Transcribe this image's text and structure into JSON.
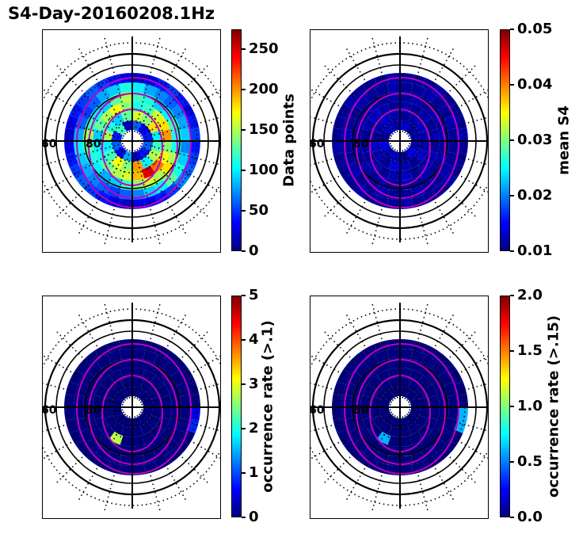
{
  "title": "S4-Day-20160208.1Hz",
  "colormap": [
    "#00007f",
    "#0000ff",
    "#007fff",
    "#00ffff",
    "#7fff7f",
    "#ffff00",
    "#ff7f00",
    "#ff0000",
    "#7f0000"
  ],
  "contour_color": "#c000c0",
  "chart_data": [
    {
      "type": "heatmap",
      "projection": "polar",
      "panel": "top-left",
      "colorbar_label": "Data points",
      "clim": [
        0,
        275
      ],
      "colorbar_ticks": [
        "0",
        "50",
        "100",
        "150",
        "200",
        "250"
      ],
      "colorbar_tick_values": [
        0,
        50,
        100,
        150,
        200,
        250
      ],
      "grid_labels": [
        "60",
        "80"
      ],
      "magnetic_contours": 3,
      "ring_cells": [
        {
          "ring": 1,
          "cells": [
            60,
            40,
            20,
            80,
            30,
            60,
            40,
            120,
            20,
            60,
            30,
            40
          ]
        },
        {
          "ring": 2,
          "cells": [
            120,
            150,
            100,
            200,
            140,
            170,
            120,
            100,
            150,
            110,
            90,
            130,
            160,
            140,
            180,
            100
          ]
        },
        {
          "ring": 3,
          "cells": [
            140,
            170,
            210,
            250,
            190,
            160,
            150,
            130,
            110,
            100,
            90,
            130,
            150,
            170,
            140,
            110,
            120,
            160,
            180,
            200
          ]
        },
        {
          "ring": 4,
          "cells": [
            110,
            150,
            180,
            150,
            160,
            140,
            120,
            90,
            80,
            100,
            110,
            130,
            150,
            120,
            100,
            90,
            130,
            150,
            120,
            110,
            90,
            100,
            120,
            110
          ]
        },
        {
          "ring": 5,
          "cells": [
            70,
            90,
            110,
            130,
            100,
            90,
            70,
            60,
            50,
            60,
            70,
            80,
            90,
            100,
            80,
            60,
            50,
            60,
            80,
            90,
            110,
            100,
            80,
            70,
            60,
            70,
            80,
            90
          ]
        },
        {
          "ring": 6,
          "cells": [
            40,
            50,
            60,
            70,
            50,
            40,
            30,
            30,
            20,
            30,
            40,
            50,
            60,
            50,
            40,
            30,
            20,
            30,
            40,
            50,
            60,
            50,
            40,
            30,
            20,
            30,
            40,
            50,
            40,
            30,
            40,
            50
          ]
        }
      ]
    },
    {
      "type": "heatmap",
      "projection": "polar",
      "panel": "top-right",
      "colorbar_label": "mean S4",
      "clim": [
        0.01,
        0.05
      ],
      "colorbar_ticks": [
        "0.01",
        "0.02",
        "0.03",
        "0.04",
        "0.05"
      ],
      "colorbar_tick_values": [
        0.01,
        0.02,
        0.03,
        0.04,
        0.05
      ],
      "grid_labels": [
        "60",
        "80"
      ],
      "magnetic_contours": 3,
      "ring_cells": [
        {
          "ring": 1,
          "cells": [
            0.012,
            0.014,
            0.011,
            0.013,
            0.012,
            0.015,
            0.011,
            0.013,
            0.012,
            0.014,
            0.011,
            0.012
          ]
        },
        {
          "ring": 2,
          "cells": [
            0.012,
            0.013,
            0.011,
            0.012,
            0.014,
            0.011,
            0.012,
            0.013,
            0.011,
            0.012,
            0.013,
            0.012,
            0.011,
            0.012,
            0.013,
            0.012
          ]
        },
        {
          "ring": 3,
          "cells": [
            0.011,
            0.012,
            0.012,
            0.011,
            0.013,
            0.012,
            0.011,
            0.012,
            0.011,
            0.012,
            0.011,
            0.012,
            0.013,
            0.012,
            0.011,
            0.012,
            0.011,
            0.012,
            0.011,
            0.012
          ]
        },
        {
          "ring": 4,
          "cells": [
            0.011,
            0.012,
            0.011,
            0.012,
            0.011,
            0.012,
            0.011,
            0.012,
            0.011,
            0.012,
            0.011,
            0.012,
            0.011,
            0.012,
            0.011,
            0.012,
            0.011,
            0.012,
            0.011,
            0.012,
            0.011,
            0.012,
            0.011,
            0.012
          ]
        },
        {
          "ring": 5,
          "cells": [
            0.011,
            0.011,
            0.012,
            0.011,
            0.011,
            0.012,
            0.011,
            0.011,
            0.012,
            0.011,
            0.011,
            0.012,
            0.011,
            0.011,
            0.012,
            0.011,
            0.011,
            0.012,
            0.011,
            0.011,
            0.012,
            0.011,
            0.011,
            0.012,
            0.011,
            0.011,
            0.012,
            0.011
          ]
        },
        {
          "ring": 6,
          "cells": [
            0.011,
            0.011,
            0.011,
            0.012,
            0.011,
            0.011,
            0.011,
            0.012,
            0.011,
            0.011,
            0.011,
            0.012,
            0.011,
            0.011,
            0.011,
            0.012,
            0.011,
            0.011,
            0.011,
            0.012,
            0.011,
            0.011,
            0.011,
            0.012,
            0.011,
            0.011,
            0.011,
            0.012,
            0.011,
            0.011,
            0.011,
            0.012
          ]
        }
      ]
    },
    {
      "type": "heatmap",
      "projection": "polar",
      "panel": "bottom-left",
      "colorbar_label": "occurrence rate (>.1)",
      "clim": [
        0,
        5
      ],
      "colorbar_ticks": [
        "0",
        "1",
        "2",
        "3",
        "4",
        "5"
      ],
      "colorbar_tick_values": [
        0,
        1,
        2,
        3,
        4,
        5
      ],
      "grid_labels": [
        "60",
        "80"
      ],
      "magnetic_contours": 3,
      "ring_cells": [
        {
          "ring": 1,
          "cells": [
            0,
            0,
            0,
            0,
            0,
            0,
            0,
            0,
            0,
            0,
            0,
            0
          ]
        },
        {
          "ring": 2,
          "cells": [
            0,
            0,
            0,
            0,
            0,
            0,
            0,
            0,
            0,
            0,
            0,
            0,
            0,
            0,
            0,
            0
          ]
        },
        {
          "ring": 3,
          "cells": [
            0,
            0,
            0,
            0,
            0,
            0,
            2.8,
            0,
            0,
            0,
            0,
            0,
            0,
            0,
            0,
            0,
            0,
            0,
            0,
            0
          ]
        },
        {
          "ring": 4,
          "cells": [
            0,
            0,
            0,
            0,
            0,
            0,
            0,
            0,
            0,
            0,
            0,
            0,
            0,
            0,
            0,
            0,
            0,
            0,
            0,
            0,
            0,
            0,
            0,
            0
          ]
        },
        {
          "ring": 5,
          "cells": [
            0,
            0,
            0,
            0,
            0,
            0,
            0,
            0,
            0,
            0,
            0,
            0,
            0,
            0,
            0,
            0,
            0,
            0,
            0,
            0,
            0,
            0,
            0,
            0,
            0,
            0,
            0,
            0
          ]
        },
        {
          "ring": 6,
          "cells": [
            0.5,
            0.8,
            0,
            0,
            0,
            0,
            0,
            0,
            0,
            0,
            0,
            0,
            0,
            0,
            0,
            0,
            0,
            0,
            0,
            0,
            0,
            0,
            0,
            0,
            0,
            0,
            0,
            0,
            0,
            0,
            0,
            0
          ]
        }
      ]
    },
    {
      "type": "heatmap",
      "projection": "polar",
      "panel": "bottom-right",
      "colorbar_label": "occurrence rate (>.15)",
      "clim": [
        0.0,
        2.0
      ],
      "colorbar_ticks": [
        "0.0",
        "0.5",
        "1.0",
        "1.5",
        "2.0"
      ],
      "colorbar_tick_values": [
        0.0,
        0.5,
        1.0,
        1.5,
        2.0
      ],
      "grid_labels": [
        "60",
        "80"
      ],
      "magnetic_contours": 3,
      "ring_cells": [
        {
          "ring": 1,
          "cells": [
            0,
            0,
            0,
            0,
            0,
            0,
            0,
            0,
            0,
            0,
            0,
            0
          ]
        },
        {
          "ring": 2,
          "cells": [
            0,
            0,
            0,
            0,
            0,
            0,
            0,
            0,
            0,
            0,
            0,
            0,
            0,
            0,
            0,
            0
          ]
        },
        {
          "ring": 3,
          "cells": [
            0,
            0,
            0,
            0,
            0,
            0,
            0.6,
            0,
            0,
            0,
            0,
            0,
            0,
            0,
            0,
            0,
            0,
            0,
            0,
            0
          ]
        },
        {
          "ring": 4,
          "cells": [
            0,
            0,
            0,
            0,
            0,
            0,
            0,
            0,
            0,
            0,
            0,
            0,
            0,
            0,
            0,
            0,
            0,
            0,
            0,
            0,
            0,
            0,
            0,
            0
          ]
        },
        {
          "ring": 5,
          "cells": [
            0,
            0,
            0,
            0,
            0,
            0,
            0,
            0,
            0,
            0,
            0,
            0,
            0,
            0,
            0,
            0,
            0,
            0,
            0,
            0,
            0,
            0,
            0,
            0,
            0,
            0,
            0,
            0
          ]
        },
        {
          "ring": 6,
          "cells": [
            0.6,
            0.6,
            0,
            0,
            0,
            0,
            0,
            0,
            0,
            0,
            0,
            0,
            0,
            0,
            0,
            0,
            0,
            0,
            0,
            0,
            0,
            0,
            0,
            0,
            0,
            0,
            0,
            0,
            0,
            0,
            0,
            0
          ]
        }
      ]
    }
  ]
}
